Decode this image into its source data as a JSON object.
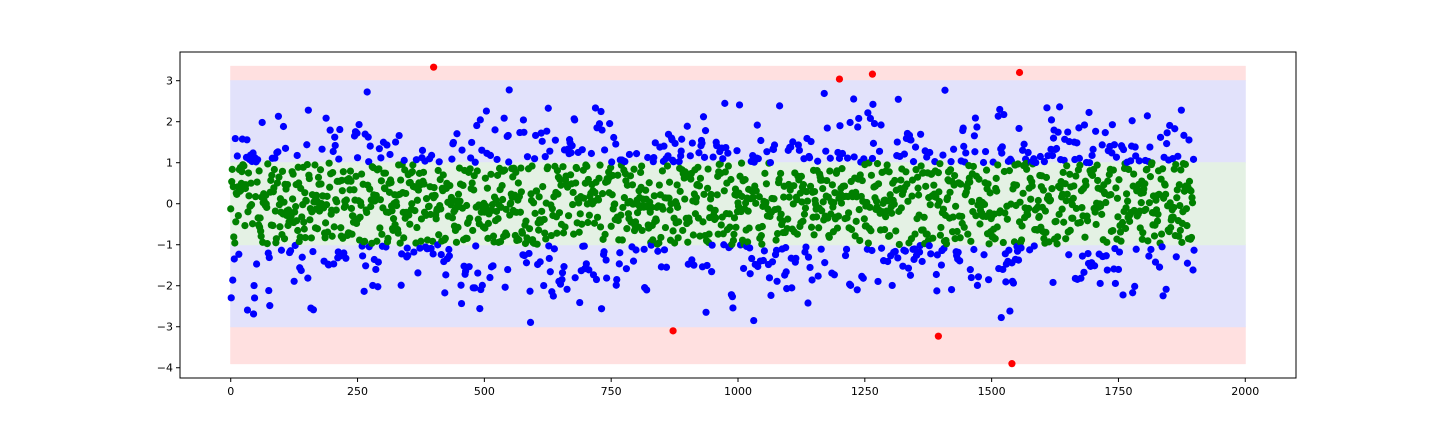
{
  "chart_data": {
    "type": "scatter",
    "title": "",
    "xlabel": "",
    "ylabel": "",
    "xlim": [
      -100,
      2100
    ],
    "ylim": [
      -4.25,
      3.7
    ],
    "x_ticks": [
      0,
      250,
      500,
      750,
      1000,
      1250,
      1500,
      1750,
      2000
    ],
    "x_tick_labels": [
      "0",
      "250",
      "500",
      "750",
      "1000",
      "1250",
      "1500",
      "1750",
      "2000"
    ],
    "y_ticks": [
      3,
      2,
      1,
      0,
      -1,
      -2,
      -3,
      -4
    ],
    "y_tick_labels": [
      "3",
      "2",
      "1",
      "0",
      "−1",
      "−2",
      "−3",
      "−4"
    ],
    "grid": false,
    "bands": [
      {
        "name": "",
        "x": [
          0,
          2000
        ],
        "y": [
          3.0,
          3.35
        ],
        "color": "#ffe0e0"
      },
      {
        "name": "",
        "x": [
          0,
          2000
        ],
        "y": [
          -3.9,
          -3.0
        ],
        "color": "#ffe0e0"
      },
      {
        "name": "",
        "x": [
          0,
          2000
        ],
        "y": [
          1.0,
          3.0
        ],
        "color": "#e2e2fb"
      },
      {
        "name": "",
        "x": [
          0,
          2000
        ],
        "y": [
          -3.0,
          -1.0
        ],
        "color": "#e2e2fb"
      },
      {
        "name": "",
        "x": [
          0,
          2000
        ],
        "y": [
          -1.0,
          1.0
        ],
        "color": "#e4f1e4"
      }
    ],
    "series": [
      {
        "color": "#008000",
        "rule": "|y| <= 1",
        "x_range": [
          0,
          1900
        ],
        "approx_count": 1300
      },
      {
        "color": "#0000ff",
        "rule": "1 < |y| <= 3",
        "x_range": [
          0,
          1900
        ],
        "approx_count": 590
      },
      {
        "color": "#ff0000",
        "rule": "|y| > 3",
        "points": [
          {
            "x": 400,
            "y": 3.33
          },
          {
            "x": 1200,
            "y": 3.04
          },
          {
            "x": 1265,
            "y": 3.16
          },
          {
            "x": 1555,
            "y": 3.2
          },
          {
            "x": 872,
            "y": -3.1
          },
          {
            "x": 1395,
            "y": -3.23
          },
          {
            "x": 1540,
            "y": -3.9
          }
        ]
      }
    ]
  }
}
